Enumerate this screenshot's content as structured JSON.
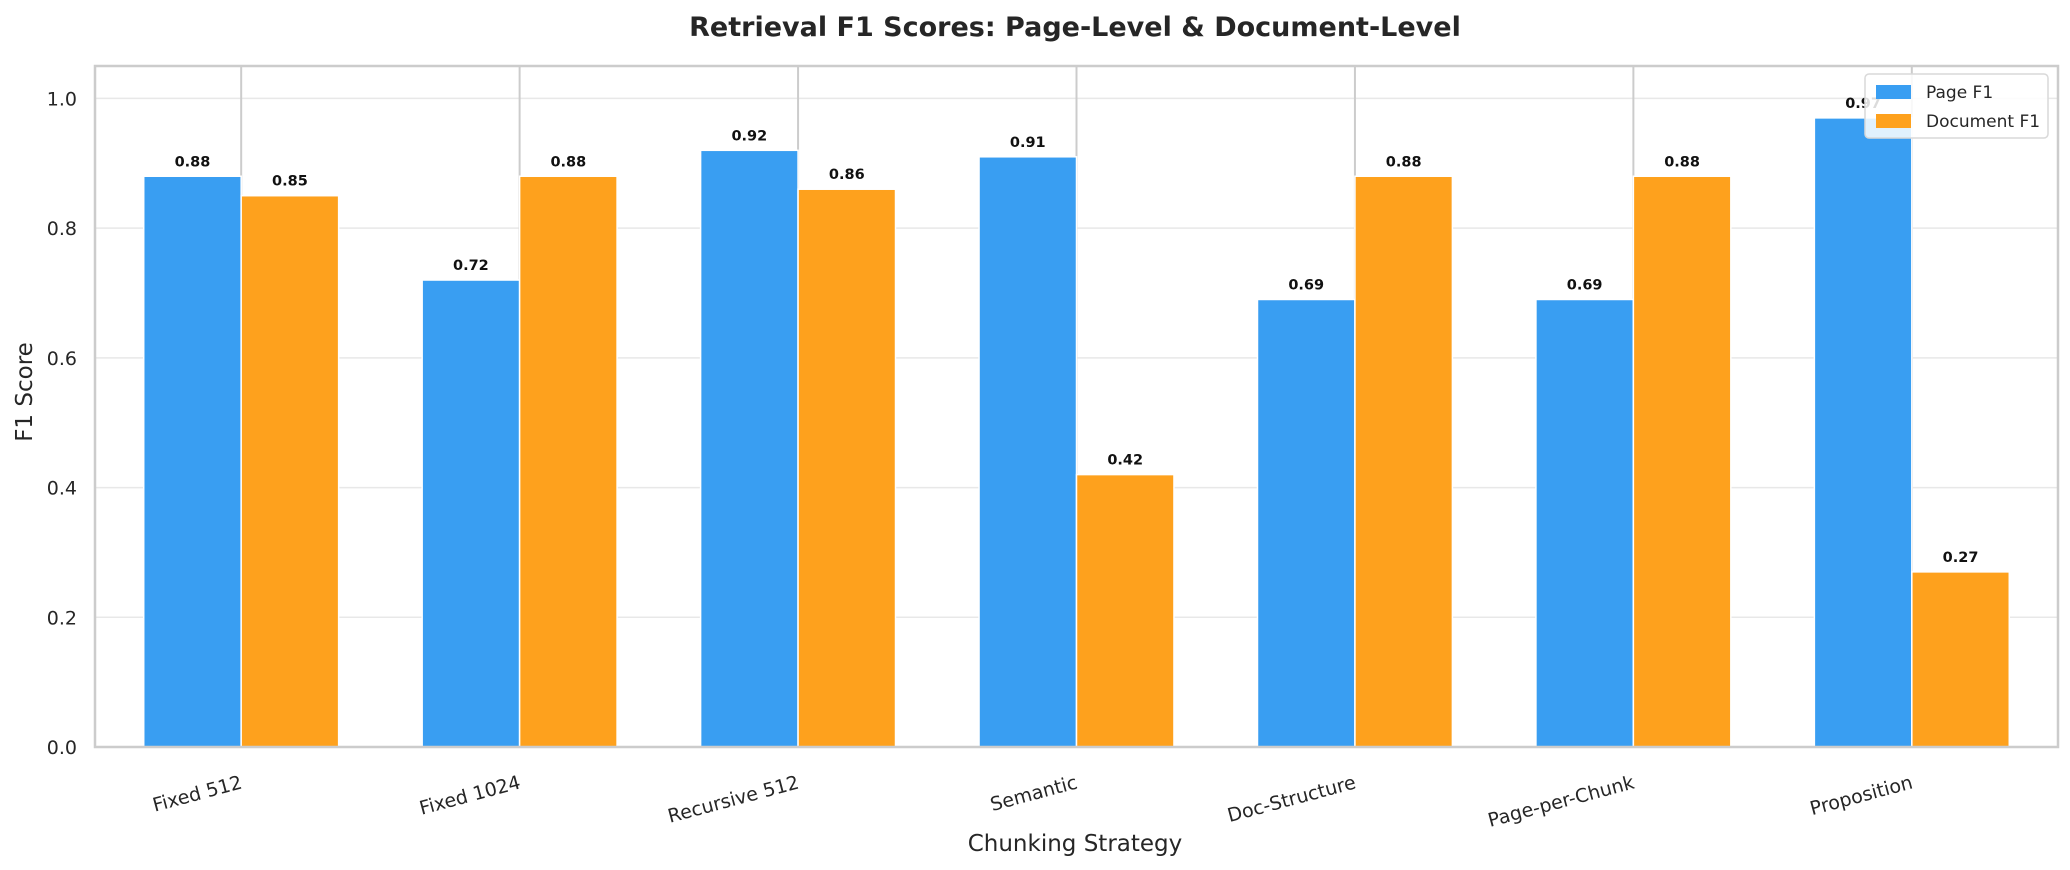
{
  "chart_data": {
    "type": "bar",
    "title": "Retrieval F1 Scores: Page-Level & Document-Level",
    "xlabel": "Chunking Strategy",
    "ylabel": "F1 Score",
    "categories": [
      "Fixed 512",
      "Fixed 1024",
      "Recursive 512",
      "Semantic",
      "Doc-Structure",
      "Page-per-Chunk",
      "Proposition"
    ],
    "series": [
      {
        "name": "Page F1",
        "color": "#399ef2",
        "values": [
          0.88,
          0.72,
          0.92,
          0.91,
          0.69,
          0.69,
          0.97
        ]
      },
      {
        "name": "Document F1",
        "color": "#fea11d",
        "values": [
          0.85,
          0.88,
          0.86,
          0.42,
          0.88,
          0.88,
          0.27
        ]
      }
    ],
    "ylim": [
      0,
      1.05
    ],
    "yticks": [
      0.0,
      0.2,
      0.4,
      0.6,
      0.8,
      1.0
    ],
    "ytick_labels": [
      "0.0",
      "0.2",
      "0.4",
      "0.6",
      "0.8",
      "1.0"
    ],
    "grid": true,
    "legend_position": "top-right"
  }
}
